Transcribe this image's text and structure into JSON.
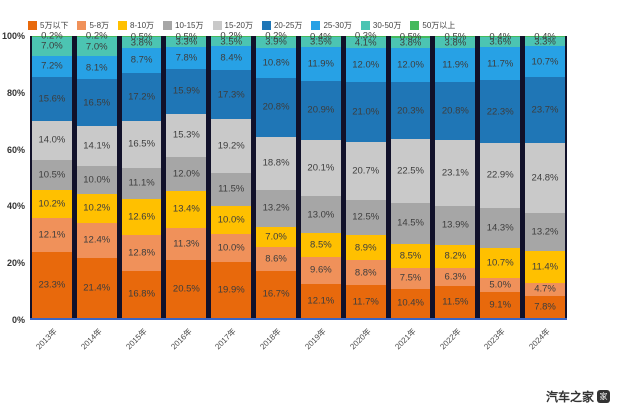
{
  "chart_data": {
    "type": "bar",
    "variant": "stacked-100",
    "title": "",
    "xlabel": "",
    "ylabel": "",
    "ylim": [
      0,
      100
    ],
    "yticks": [
      "0%",
      "20%",
      "40%",
      "60%",
      "80%",
      "100%"
    ],
    "legend_position": "top",
    "grid": false,
    "value_labels": true,
    "unit": "%",
    "categories": [
      "2013年",
      "2014年",
      "2015年",
      "2016年",
      "2017年",
      "2018年",
      "2019年",
      "2020年",
      "2021年",
      "2022年",
      "2023年",
      "2024年"
    ],
    "series": [
      {
        "name": "5万以下",
        "color": "#e8690c",
        "values": [
          23.3,
          21.4,
          16.8,
          20.5,
          19.9,
          16.7,
          12.1,
          11.7,
          10.4,
          11.5,
          9.1,
          7.8
        ]
      },
      {
        "name": "5-8万",
        "color": "#f0915a",
        "values": [
          12.1,
          12.4,
          12.8,
          11.3,
          10.0,
          8.6,
          9.6,
          8.8,
          7.5,
          6.3,
          5.0,
          4.7
        ]
      },
      {
        "name": "8-10万",
        "color": "#ffc000",
        "values": [
          10.2,
          10.2,
          12.6,
          13.4,
          10.0,
          7.0,
          8.5,
          8.9,
          8.5,
          8.2,
          10.7,
          11.4
        ]
      },
      {
        "name": "10-15万",
        "color": "#a6a6a6",
        "values": [
          10.5,
          10.0,
          11.1,
          12.0,
          11.5,
          13.2,
          13.0,
          12.5,
          14.5,
          13.9,
          14.3,
          13.2
        ]
      },
      {
        "name": "15-20万",
        "color": "#c9c9c9",
        "values": [
          14.0,
          14.1,
          16.5,
          15.3,
          19.2,
          18.8,
          20.1,
          20.7,
          22.5,
          23.1,
          22.9,
          24.8
        ]
      },
      {
        "name": "20-25万",
        "color": "#1f76b6",
        "values": [
          15.6,
          16.5,
          17.2,
          15.9,
          17.3,
          20.8,
          20.9,
          21.0,
          20.3,
          20.8,
          22.3,
          23.7
        ]
      },
      {
        "name": "25-30万",
        "color": "#27a1e5",
        "values": [
          7.2,
          8.1,
          8.7,
          7.8,
          8.4,
          10.8,
          11.9,
          12.0,
          12.0,
          11.9,
          11.7,
          10.7
        ]
      },
      {
        "name": "30-50万",
        "color": "#4cc4b2",
        "values": [
          7.0,
          7.0,
          3.8,
          3.3,
          3.5,
          3.9,
          3.5,
          4.1,
          3.8,
          3.8,
          3.6,
          3.3
        ]
      },
      {
        "name": "50万以上",
        "color": "#45b95c",
        "values": [
          0.2,
          0.2,
          0.5,
          0.5,
          0.2,
          0.2,
          0.4,
          0.3,
          0.5,
          0.5,
          0.4,
          0.4
        ]
      }
    ]
  },
  "watermark": {
    "text": "汽车之家",
    "logo_glyph": "家"
  },
  "colors": {
    "plot_background": "#11112a",
    "axis_line": "#3b66c4",
    "label_text": "#3d3d3d",
    "tick_text": "#333333"
  }
}
